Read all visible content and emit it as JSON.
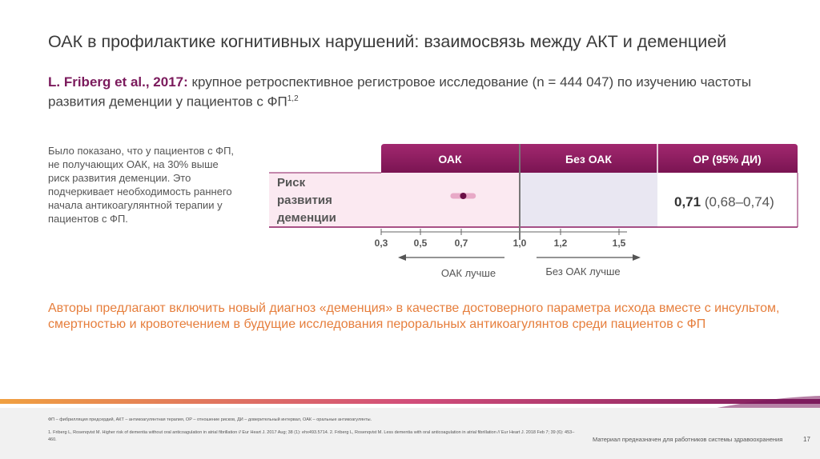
{
  "title": "ОАК в профилактике когнитивных нарушений: взаимосвязь между АКТ и деменцией",
  "subtitle": {
    "author": "L. Friberg et al., 2017:",
    "text": " крупное ретроспективное регистровое исследование (n = 444 047) по изучению частоты развития деменции у пациентов с ФП",
    "sup": "1,2"
  },
  "side_text": "Было показано, что у пациентов с ФП, не получающих ОАК, на 30% выше риск развития деменции. Это подчеркивает необходимость раннего начала антикоагулянтной терапии у пациентов с ФП.",
  "conclusion": "Авторы предлагают включить новый диагноз «деменция» в качестве достоверного параметра исхода вместе с инсультом, смертностью и кровотечением в будущие исследования пероральных антикоагулянтов среди пациентов с ФП",
  "chart_data": {
    "type": "forest",
    "column_headers": [
      "ОАК",
      "Без ОАК",
      "ОР (95% ДИ)"
    ],
    "rows": [
      {
        "label": [
          "Риск",
          "развития",
          "деменции"
        ],
        "estimate": 0.71,
        "ci_low": 0.68,
        "ci_high": 0.74,
        "estimate_text": "0,71",
        "ci_text": "(0,68–0,74)"
      }
    ],
    "x_ticks": [
      0.3,
      0.5,
      0.7,
      1.0,
      1.2,
      1.5
    ],
    "x_tick_labels": [
      "0,3",
      "0,5",
      "0,7",
      "1,0",
      "1,2",
      "1,5"
    ],
    "reference_line": 1.0,
    "left_arrow_label": "ОАК лучше",
    "right_arrow_label": "Без ОАК лучше",
    "colors": {
      "header": "#8b1a60",
      "left_panel": "#fbe9f1",
      "right_panel": "#e9e7f2",
      "point": "#6a0e46",
      "ci": "#e8a9c7"
    }
  },
  "footer": {
    "abbreviations": "ФП – фибрилляция предсердий, АКТ – антикоагулянтная терапия, ОР – отношение рисков, ДИ – доверительный интервал, ОАК – оральные антикоагулянты.",
    "references": "1. Friberg L, Rosenqvist M. Higher risk of dementia without oral anticoagulation in atrial fibrillation // Eur Heart J. 2017 Aug; 38 (1): ehx493.5714. 2. Friberg L, Rosenqvist M. Less dementia with oral anticoagulation in atrial fibrillation // Eur Heart J. 2018 Feb 7; 39 (6): 453–460.",
    "disclaimer": "Материал предназначен для работников системы здравоохранения",
    "page": "17"
  }
}
